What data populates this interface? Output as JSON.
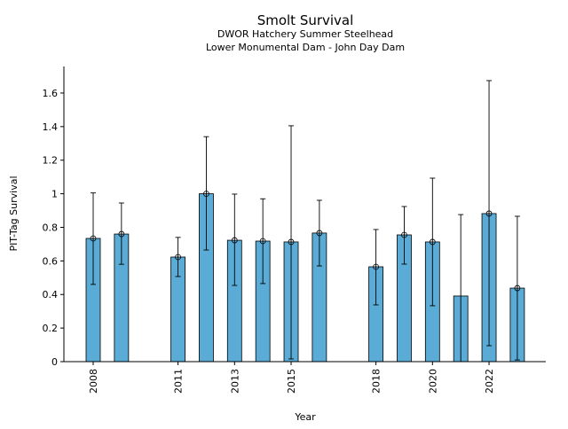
{
  "chart_data": {
    "type": "bar",
    "title": "Smolt Survival",
    "subtitle": [
      "DWOR Hatchery Summer Steelhead",
      "Lower Monumental Dam - John Day Dam"
    ],
    "xlabel": "Year",
    "ylabel": "PIT-Tag Survival",
    "ylim": [
      0,
      1.76
    ],
    "yticks": [
      0,
      0.2,
      0.4,
      0.6,
      0.8,
      1,
      1.2,
      1.4,
      1.6
    ],
    "ytick_labels": [
      "0",
      "0.2",
      "0.4",
      "0.6",
      "0.8",
      "1",
      "1.2",
      "1.4",
      "1.6"
    ],
    "xticks": [
      2008,
      2011,
      2013,
      2015,
      2018,
      2020,
      2022
    ],
    "xtick_labels": [
      "2008",
      "2011",
      "2013",
      "2015",
      "2018",
      "2020",
      "2022"
    ],
    "grid": false,
    "bar_color": "#5aabd6",
    "points": [
      {
        "year": 2008,
        "value": 0.734,
        "lower": 0.46,
        "upper": 1.005,
        "marker": true
      },
      {
        "year": 2009,
        "value": 0.76,
        "lower": 0.58,
        "upper": 0.945,
        "marker": true
      },
      {
        "year": 2011,
        "value": 0.623,
        "lower": 0.507,
        "upper": 0.74,
        "marker": true
      },
      {
        "year": 2012,
        "value": 1.0,
        "lower": 0.665,
        "upper": 1.34,
        "marker": true
      },
      {
        "year": 2013,
        "value": 0.723,
        "lower": 0.454,
        "upper": 0.998,
        "marker": true
      },
      {
        "year": 2014,
        "value": 0.718,
        "lower": 0.465,
        "upper": 0.97,
        "marker": true
      },
      {
        "year": 2015,
        "value": 0.713,
        "lower": 0.016,
        "upper": 1.405,
        "marker": true
      },
      {
        "year": 2016,
        "value": 0.766,
        "lower": 0.57,
        "upper": 0.961,
        "marker": true
      },
      {
        "year": 2018,
        "value": 0.565,
        "lower": 0.338,
        "upper": 0.787,
        "marker": true
      },
      {
        "year": 2019,
        "value": 0.755,
        "lower": 0.581,
        "upper": 0.924,
        "marker": true
      },
      {
        "year": 2020,
        "value": 0.713,
        "lower": 0.333,
        "upper": 1.093,
        "marker": true
      },
      {
        "year": 2021,
        "value": 0.391,
        "lower": 0,
        "upper": 0.876,
        "marker": false
      },
      {
        "year": 2022,
        "value": 0.882,
        "lower": 0.095,
        "upper": 1.674,
        "marker": true
      },
      {
        "year": 2023,
        "value": 0.438,
        "lower": 0.01,
        "upper": 0.866,
        "marker": true
      }
    ]
  }
}
